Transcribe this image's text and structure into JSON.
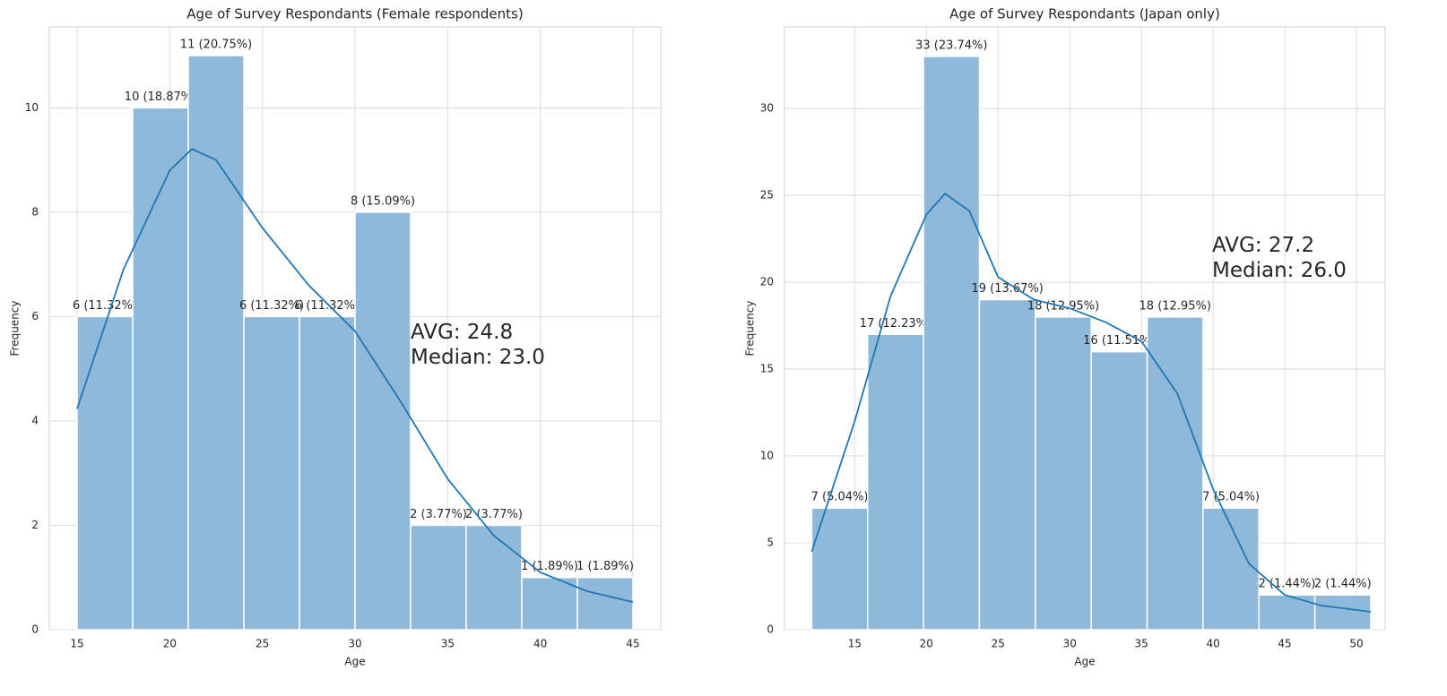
{
  "chart_data": [
    {
      "type": "histogram",
      "title": "Age of Survey Respondants (Female respondents)",
      "xlabel": "Age",
      "ylabel": "Frequency",
      "bins": [
        15,
        18,
        21,
        24,
        27,
        30,
        33,
        36,
        39,
        42,
        45
      ],
      "values": [
        6,
        10,
        11,
        6,
        6,
        8,
        2,
        2,
        1,
        1
      ],
      "value_labels": [
        "6 (11.32%)",
        "10 (18.87%)",
        "11 (20.75%)",
        "6 (11.32%)",
        "6 (11.32%)",
        "8 (15.09%)",
        "2 (3.77%)",
        "2 (3.77%)",
        "1 (1.89%)",
        "1 (1.89%)"
      ],
      "color": "#8fb9da",
      "line_color": "#1f77b4",
      "kde": {
        "x": [
          15,
          17.5,
          20,
          21.2,
          22.5,
          25,
          27.5,
          30,
          32.5,
          35,
          37.5,
          40,
          42.5,
          45
        ],
        "values": [
          4.23,
          6.9,
          8.8,
          9.21,
          9.0,
          7.7,
          6.6,
          5.72,
          4.35,
          2.89,
          1.8,
          1.1,
          0.74,
          0.53
        ]
      },
      "annotation": [
        "AVG: 24.8",
        "Median: 23.0"
      ],
      "xlim": [
        13.5,
        46.5
      ],
      "xticks": [
        15,
        20,
        25,
        30,
        35,
        40,
        45
      ],
      "ylim": [
        0,
        11.55
      ],
      "yticks": [
        0,
        2,
        4,
        6,
        8,
        10
      ],
      "grid": true
    },
    {
      "type": "histogram",
      "title": "Age of Survey Respondants (Japan only)",
      "xlabel": "Age",
      "ylabel": "Frequency",
      "bins": [
        12,
        15.9,
        19.8,
        23.7,
        27.6,
        31.5,
        35.4,
        39.3,
        43.2,
        47.1,
        51
      ],
      "values": [
        7,
        17,
        33,
        19,
        18,
        16,
        18,
        7,
        2,
        2
      ],
      "value_labels": [
        "7 (5.04%)",
        "17 (12.23%)",
        "33 (23.74%)",
        "19 (13.67%)",
        "18 (12.95%)",
        "16 (11.51%)",
        "18 (12.95%)",
        "7 (5.04%)",
        "2 (1.44%)",
        "2 (1.44%)"
      ],
      "color": "#8fb9da",
      "line_color": "#1f77b4",
      "kde": {
        "x": [
          12,
          15,
          17.5,
          20,
          21.3,
          23,
          25,
          27.5,
          30,
          32.5,
          35,
          37.5,
          40,
          42.5,
          45,
          47.5,
          51
        ],
        "values": [
          4.5,
          12.0,
          19.2,
          23.9,
          25.1,
          24.1,
          20.3,
          19.0,
          18.5,
          17.7,
          16.6,
          13.6,
          8.1,
          3.8,
          2.0,
          1.4,
          1.03
        ]
      },
      "annotation": [
        "AVG: 27.2",
        "Median: 26.0"
      ],
      "xlim": [
        10.1,
        52
      ],
      "xticks": [
        15,
        20,
        25,
        30,
        35,
        40,
        45,
        50
      ],
      "ylim": [
        0,
        34.7
      ],
      "yticks": [
        0,
        5,
        10,
        15,
        20,
        25,
        30
      ],
      "grid": true
    }
  ]
}
